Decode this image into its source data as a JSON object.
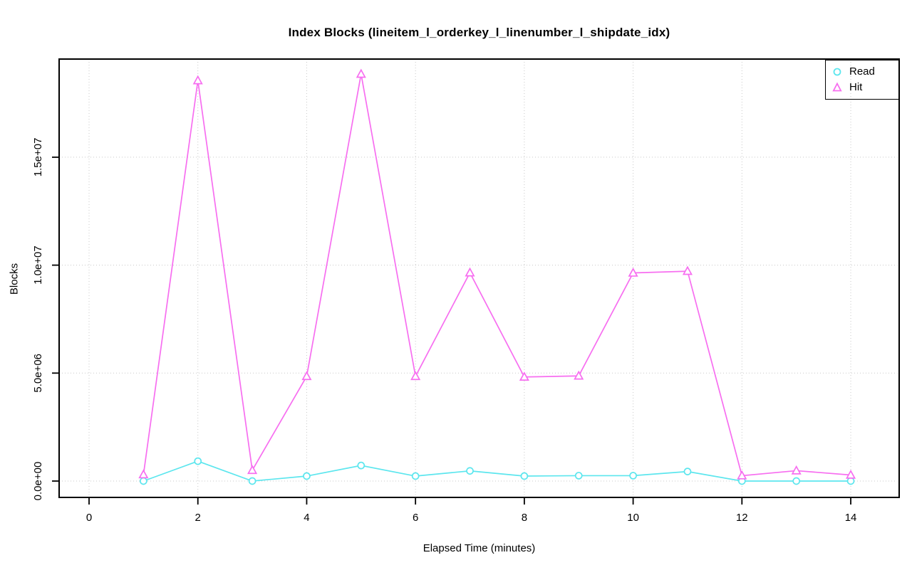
{
  "chart_data": {
    "type": "line",
    "title": "Index Blocks (lineitem_l_orderkey_l_linenumber_l_shipdate_idx)",
    "xlabel": "Elapsed Time (minutes)",
    "ylabel": "Blocks",
    "x": [
      1,
      2,
      3,
      4,
      5,
      6,
      7,
      8,
      9,
      10,
      11,
      12,
      13,
      14
    ],
    "series": [
      {
        "name": "Read",
        "marker": "circle",
        "color": "#5CE6EE",
        "values": [
          0,
          920000,
          0,
          230000,
          720000,
          230000,
          470000,
          230000,
          250000,
          250000,
          440000,
          0,
          0,
          0
        ]
      },
      {
        "name": "Hit",
        "marker": "triangle",
        "color": "#F76EF0",
        "values": [
          300000,
          18550000,
          500000,
          4850000,
          18850000,
          4850000,
          9650000,
          4820000,
          4870000,
          9640000,
          9720000,
          250000,
          480000,
          280000
        ]
      }
    ],
    "x_ticks": [
      0,
      2,
      4,
      6,
      8,
      10,
      12,
      14
    ],
    "y_ticks": [
      {
        "label": "0.0e+00",
        "value": 0
      },
      {
        "label": "5.0e+06",
        "value": 5000000
      },
      {
        "label": "1.0e+07",
        "value": 10000000
      },
      {
        "label": "1.5e+07",
        "value": 15000000
      }
    ],
    "xlim": [
      -0.55,
      14.89
    ],
    "ylim": [
      -758000,
      19545000
    ],
    "grid": "dotted-both",
    "grid_color": "#C8C8C8",
    "axis_color": "#000000",
    "legend": {
      "position": "top-right",
      "entries": [
        "Read",
        "Hit"
      ]
    }
  }
}
